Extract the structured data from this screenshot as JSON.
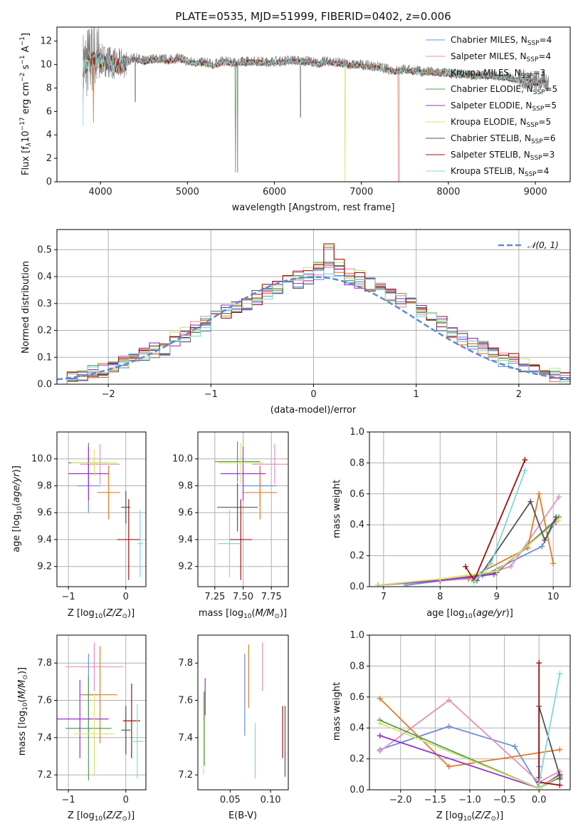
{
  "colors": {
    "chabrier_miles": "#6a8fd8",
    "salpeter_miles": "#e68fbf",
    "kroupa_miles": "#e07b28",
    "chabrier_elodie": "#5a9a5a",
    "salpeter_elodie": "#9932cc",
    "kroupa_elodie": "#d4e66a",
    "chabrier_stelib": "#555555",
    "salpeter_stelib": "#a01010",
    "kroupa_stelib": "#7fd8d8",
    "data": "#808080",
    "normal": "#5b8bd8",
    "grid": "#b0b0b0"
  },
  "chart_data": [
    {
      "id": "spectrum",
      "type": "line",
      "title": "PLATE=0535, MJD=51999, FIBERID=0402, z=0.006",
      "xlabel": "wavelength [Angstrom, rest frame]",
      "ylabel": "Flux [f_λ10^-17 erg cm^-2 s^-1 A^-1]",
      "xlim": [
        3500,
        9400
      ],
      "ylim": [
        0,
        13.2
      ],
      "xticks": [
        4000,
        5000,
        6000,
        7000,
        8000,
        9000
      ],
      "yticks": [
        0,
        2,
        4,
        6,
        8,
        10,
        12
      ],
      "grid": false,
      "legend": "top-right",
      "spectrum_x": [
        3800,
        3900,
        4000,
        4100,
        4200,
        4300,
        4400,
        4500,
        4600,
        4700,
        4800,
        4900,
        5000,
        5100,
        5200,
        5300,
        5400,
        5500,
        5600,
        5700,
        5800,
        5900,
        6000,
        6100,
        6200,
        6300,
        6400,
        6500,
        6600,
        6700,
        6800,
        6900,
        7000,
        7100,
        7200,
        7300,
        7400,
        7500,
        7600,
        7700,
        7800,
        7900,
        8000,
        8100,
        8200,
        8300,
        8400,
        8500,
        8600,
        8700,
        8800,
        8900,
        9000,
        9100,
        9150
      ],
      "spectrum_y": [
        9.8,
        10.6,
        10.4,
        10.3,
        9.9,
        10.3,
        10.6,
        10.3,
        10.5,
        10.5,
        10.4,
        10.6,
        10.3,
        10.2,
        10.2,
        10.0,
        10.3,
        10.2,
        10.2,
        10.3,
        10.3,
        10.2,
        10.3,
        10.3,
        10.4,
        10.3,
        10.3,
        10.1,
        10.3,
        10.2,
        10.1,
        10.0,
        10.0,
        9.9,
        9.8,
        9.6,
        9.5,
        9.6,
        9.5,
        9.4,
        9.4,
        9.3,
        9.3,
        9.2,
        9.2,
        9.1,
        9.1,
        9.1,
        9.0,
        8.9,
        8.8,
        8.7,
        8.5,
        8.6,
        8.5
      ],
      "series": [
        {
          "name": "Chabrier MILES, N_SSP=4"
        },
        {
          "name": "Salpeter MILES, N_SSP=4"
        },
        {
          "name": "Kroupa MILES, N_SSP=3"
        },
        {
          "name": "Chabrier ELODIE, N_SSP=5"
        },
        {
          "name": "Salpeter ELODIE, N_SSP=5"
        },
        {
          "name": "Kroupa ELODIE, N_SSP=5"
        },
        {
          "name": "Chabrier STELIB, N_SSP=6"
        },
        {
          "name": "Salpeter STELIB, N_SSP=3"
        },
        {
          "name": "Kroupa STELIB, N_SSP=4"
        }
      ]
    },
    {
      "id": "residuals",
      "type": "histogram",
      "xlabel": "(data-model)/error",
      "ylabel": "Normed distribution",
      "xlim": [
        -2.5,
        2.5
      ],
      "ylim": [
        0,
        0.575
      ],
      "xticks": [
        -2,
        -1,
        0,
        1,
        2
      ],
      "yticks": [
        0.0,
        0.1,
        0.2,
        0.3,
        0.4,
        0.5
      ],
      "grid": true,
      "legend": "top-right",
      "legend_label": "N(0,1)",
      "bins": [
        -2.5,
        -2.4,
        -2.3,
        -2.2,
        -2.1,
        -2.0,
        -1.9,
        -1.8,
        -1.7,
        -1.6,
        -1.5,
        -1.4,
        -1.3,
        -1.2,
        -1.1,
        -1.0,
        -0.9,
        -0.8,
        -0.7,
        -0.6,
        -0.5,
        -0.4,
        -0.3,
        -0.2,
        -0.1,
        0.0,
        0.1,
        0.2,
        0.3,
        0.4,
        0.5,
        0.6,
        0.7,
        0.8,
        0.9,
        1.0,
        1.1,
        1.2,
        1.3,
        1.4,
        1.5,
        1.6,
        1.7,
        1.8,
        1.9,
        2.0,
        2.1,
        2.2,
        2.3,
        2.4,
        2.5
      ],
      "series_values": [
        [
          0.018,
          0.025,
          0.035,
          0.04,
          0.055,
          0.07,
          0.08,
          0.09,
          0.11,
          0.13,
          0.13,
          0.16,
          0.18,
          0.2,
          0.22,
          0.25,
          0.27,
          0.29,
          0.3,
          0.33,
          0.34,
          0.36,
          0.37,
          0.38,
          0.39,
          0.41,
          0.43,
          0.42,
          0.39,
          0.38,
          0.37,
          0.36,
          0.34,
          0.32,
          0.3,
          0.27,
          0.25,
          0.22,
          0.2,
          0.17,
          0.15,
          0.13,
          0.11,
          0.09,
          0.08,
          0.06,
          0.05,
          0.04,
          0.03,
          0.02
        ],
        [
          0.022,
          0.03,
          0.03,
          0.045,
          0.05,
          0.065,
          0.085,
          0.1,
          0.12,
          0.12,
          0.14,
          0.17,
          0.19,
          0.21,
          0.23,
          0.24,
          0.26,
          0.28,
          0.31,
          0.32,
          0.35,
          0.37,
          0.39,
          0.4,
          0.42,
          0.43,
          0.52,
          0.44,
          0.41,
          0.4,
          0.35,
          0.37,
          0.33,
          0.31,
          0.31,
          0.28,
          0.26,
          0.23,
          0.19,
          0.18,
          0.16,
          0.14,
          0.12,
          0.1,
          0.09,
          0.07,
          0.06,
          0.04,
          0.035,
          0.025
        ]
      ],
      "normal_curve": {
        "mean": 0,
        "sigma": 1
      }
    },
    {
      "id": "age-vs-z",
      "type": "errorbar",
      "xlabel": "Z [log10(Z/Z⊙)]",
      "ylabel": "age [log10(age/yr)]",
      "xlim": [
        -1.2,
        0.35
      ],
      "ylim": [
        9.05,
        10.2
      ],
      "xticks": [
        -1,
        0
      ],
      "yticks": [
        9.2,
        9.4,
        9.6,
        9.8,
        10.0
      ],
      "grid": true,
      "points": [
        {
          "x": -0.65,
          "xerr": 0.2,
          "y": 9.8,
          "yerr": 0.2
        },
        {
          "x": -0.45,
          "xerr": 0.35,
          "y": 9.96,
          "yerr": 0.15
        },
        {
          "x": -0.3,
          "xerr": 0.2,
          "y": 9.75,
          "yerr": 0.2
        },
        {
          "x": -0.65,
          "xerr": 0.35,
          "y": 9.97,
          "yerr": 0.15
        },
        {
          "x": -0.65,
          "xerr": 0.35,
          "y": 9.89,
          "yerr": 0.2
        },
        {
          "x": -0.55,
          "xerr": 0.4,
          "y": 9.97,
          "yerr": 0.1
        },
        {
          "x": 0.0,
          "xerr": 0.08,
          "y": 9.64,
          "yerr": 0.12
        },
        {
          "x": 0.05,
          "xerr": 0.2,
          "y": 9.4,
          "yerr": 0.3
        },
        {
          "x": 0.25,
          "xerr": 0.05,
          "y": 9.37,
          "yerr": 0.25
        }
      ]
    },
    {
      "id": "age-vs-mass",
      "type": "errorbar",
      "xlabel": "mass [log10(M/M⊙)]",
      "ylabel": "",
      "xlim": [
        7.1,
        7.9
      ],
      "ylim": [
        9.05,
        10.2
      ],
      "xticks": [
        7.25,
        7.5,
        7.75
      ],
      "yticks": [
        9.2,
        9.4,
        9.6,
        9.8,
        10.0
      ],
      "grid": true,
      "points": [
        {
          "x": 7.65,
          "xerr": 0.15,
          "y": 9.8,
          "yerr": 0.15
        },
        {
          "x": 7.78,
          "xerr": 0.2,
          "y": 9.96,
          "yerr": 0.15
        },
        {
          "x": 7.65,
          "xerr": 0.15,
          "y": 9.75,
          "yerr": 0.2
        },
        {
          "x": 7.45,
          "xerr": 0.2,
          "y": 9.98,
          "yerr": 0.15
        },
        {
          "x": 7.5,
          "xerr": 0.2,
          "y": 9.89,
          "yerr": 0.2
        },
        {
          "x": 7.48,
          "xerr": 0.2,
          "y": 9.97,
          "yerr": 0.15
        },
        {
          "x": 7.45,
          "xerr": 0.18,
          "y": 9.64,
          "yerr": 0.18
        },
        {
          "x": 7.48,
          "xerr": 0.1,
          "y": 9.4,
          "yerr": 0.3
        },
        {
          "x": 7.38,
          "xerr": 0.1,
          "y": 9.37,
          "yerr": 0.25
        }
      ]
    },
    {
      "id": "weight-vs-age",
      "type": "line",
      "xlabel": "age [log10(age/yr)]",
      "ylabel": "mass weight",
      "xlim": [
        6.75,
        10.3
      ],
      "ylim": [
        0,
        1.0
      ],
      "xticks": [
        7,
        8,
        9,
        10
      ],
      "yticks": [
        0.0,
        0.2,
        0.4,
        0.6,
        0.8,
        1.0
      ],
      "grid": true,
      "series": [
        {
          "x": [
            7.4,
            8.75,
            9.8,
            10.0
          ],
          "y": [
            0.01,
            0.07,
            0.26,
            0.4
          ]
        },
        {
          "x": [
            6.9,
            8.5,
            9.25,
            10.1
          ],
          "y": [
            0.01,
            0.05,
            0.13,
            0.58
          ]
        },
        {
          "x": [
            8.5,
            9.55,
            9.75,
            10.0
          ],
          "y": [
            0.05,
            0.25,
            0.6,
            0.15
          ]
        },
        {
          "x": [
            6.9,
            8.0,
            9.0,
            10.1
          ],
          "y": [
            0.01,
            0.04,
            0.09,
            0.45
          ]
        },
        {
          "x": [
            6.9,
            8.0,
            8.95,
            10.05
          ],
          "y": [
            0.01,
            0.04,
            0.08,
            0.42
          ]
        },
        {
          "x": [
            6.9,
            8.0,
            9.0,
            10.1
          ],
          "y": [
            0.01,
            0.05,
            0.1,
            0.43
          ]
        },
        {
          "x": [
            8.65,
            9.6,
            9.85,
            10.05
          ],
          "y": [
            0.04,
            0.55,
            0.3,
            0.45
          ]
        },
        {
          "x": [
            8.45,
            8.6,
            9.5
          ],
          "y": [
            0.13,
            0.04,
            0.82
          ]
        },
        {
          "x": [
            8.6,
            8.9,
            9.5
          ],
          "y": [
            0.03,
            0.15,
            0.75
          ]
        }
      ]
    },
    {
      "id": "mass-vs-z",
      "type": "errorbar",
      "xlabel": "Z [log10(Z/Z⊙)]",
      "ylabel": "mass [log10(M/M⊙)]",
      "xlim": [
        -1.2,
        0.35
      ],
      "ylim": [
        7.12,
        7.95
      ],
      "xticks": [
        -1,
        0
      ],
      "yticks": [
        7.2,
        7.4,
        7.6,
        7.8
      ],
      "grid": true,
      "points": [
        {
          "x": -0.65,
          "xerr": 0.15,
          "y": 7.63,
          "yerr": 0.22
        },
        {
          "x": -0.55,
          "xerr": 0.5,
          "y": 7.78,
          "yerr": 0.13
        },
        {
          "x": -0.45,
          "xerr": 0.3,
          "y": 7.63,
          "yerr": 0.26
        },
        {
          "x": -0.65,
          "xerr": 0.4,
          "y": 7.45,
          "yerr": 0.28
        },
        {
          "x": -0.8,
          "xerr": 0.5,
          "y": 7.5,
          "yerr": 0.21
        },
        {
          "x": -0.55,
          "xerr": 0.35,
          "y": 7.42,
          "yerr": 0.22
        },
        {
          "x": 0.0,
          "xerr": 0.08,
          "y": 7.44,
          "yerr": 0.13
        },
        {
          "x": 0.1,
          "xerr": 0.15,
          "y": 7.49,
          "yerr": 0.2
        },
        {
          "x": 0.2,
          "xerr": 0.1,
          "y": 7.38,
          "yerr": 0.2
        }
      ]
    },
    {
      "id": "mass-vs-ebv",
      "type": "errorbar",
      "xlabel": "E(B-V)",
      "ylabel": "",
      "xlim": [
        0.01,
        0.122
      ],
      "ylim": [
        7.12,
        7.95
      ],
      "xticks": [
        0.05,
        0.1
      ],
      "yticks": [
        7.2,
        7.4,
        7.6,
        7.8
      ],
      "grid": false,
      "points": [
        {
          "x": 0.068,
          "y": 7.63,
          "yerr": 0.22
        },
        {
          "x": 0.09,
          "y": 7.78,
          "yerr": 0.13
        },
        {
          "x": 0.073,
          "y": 7.73,
          "yerr": 0.17
        },
        {
          "x": 0.018,
          "y": 7.45,
          "yerr": 0.2
        },
        {
          "x": 0.019,
          "y": 7.62,
          "yerr": 0.1
        },
        {
          "x": 0.017,
          "y": 7.42,
          "yerr": 0.22
        },
        {
          "x": 0.118,
          "y": 7.38,
          "yerr": 0.19
        },
        {
          "x": 0.115,
          "y": 7.43,
          "yerr": 0.14
        },
        {
          "x": 0.081,
          "y": 7.33,
          "yerr": 0.15
        }
      ]
    },
    {
      "id": "weight-vs-z",
      "type": "line",
      "xlabel": "Z [log10(Z/Z⊙)]",
      "ylabel": "mass weight",
      "xlim": [
        -2.45,
        0.45
      ],
      "ylim": [
        0,
        1.0
      ],
      "xticks": [
        -2.0,
        -1.5,
        -1.0,
        -0.5,
        0.0
      ],
      "yticks": [
        0.0,
        0.2,
        0.4,
        0.6,
        0.8,
        1.0
      ],
      "grid": true,
      "series": [
        {
          "x": [
            -2.3,
            -1.3,
            -0.35,
            0.0,
            0.0
          ],
          "y": [
            0.26,
            0.41,
            0.28,
            0.02,
            0.15
          ]
        },
        {
          "x": [
            -2.3,
            -1.3,
            0.0,
            0.3
          ],
          "y": [
            0.25,
            0.58,
            0.05,
            0.12
          ]
        },
        {
          "x": [
            -2.3,
            -1.3,
            0.3
          ],
          "y": [
            0.59,
            0.15,
            0.26
          ]
        },
        {
          "x": [
            -2.3,
            0.0,
            0.3
          ],
          "y": [
            0.45,
            0.01,
            0.08
          ]
        },
        {
          "x": [
            -2.3,
            0.0,
            0.3
          ],
          "y": [
            0.35,
            0.01,
            0.1
          ]
        },
        {
          "x": [
            -2.3,
            0.0,
            0.3
          ],
          "y": [
            0.43,
            0.01,
            0.09
          ]
        },
        {
          "x": [
            0.0,
            0.0,
            0.3,
            0.3
          ],
          "y": [
            0.08,
            0.54,
            0.09,
            0.07
          ]
        },
        {
          "x": [
            0.0,
            0.0,
            0.3
          ],
          "y": [
            0.82,
            0.05,
            0.03
          ]
        },
        {
          "x": [
            0.0,
            0.3
          ],
          "y": [
            0.04,
            0.75
          ]
        }
      ]
    }
  ]
}
